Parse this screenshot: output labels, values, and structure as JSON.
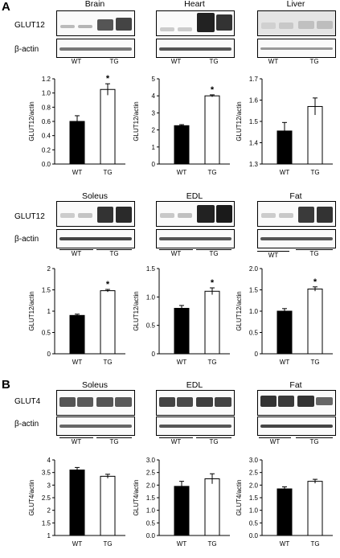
{
  "panels": {
    "a": "A",
    "b": "B"
  },
  "labels": {
    "glut12": "GLUT12",
    "glut4": "GLUT4",
    "actin": "β-actin",
    "wt": "WT",
    "tg": "TG"
  },
  "tissues": {
    "brain": "Brain",
    "heart": "Heart",
    "liver": "Liver",
    "soleus": "Soleus",
    "edl": "EDL",
    "fat": "Fat"
  },
  "colors": {
    "wt_bar": "#000000",
    "tg_bar": "#ffffff"
  },
  "chart_data": [
    {
      "id": "brain-glut12",
      "type": "bar",
      "categories": [
        "WT",
        "TG"
      ],
      "values": [
        0.6,
        1.05
      ],
      "errors": [
        0.08,
        0.08
      ],
      "significant": [
        false,
        true
      ],
      "ylabel": "GLUT12/actin",
      "ylim": [
        0,
        1.2
      ],
      "ticks": [
        "0.0",
        "0.2",
        "0.4",
        "0.6",
        "0.8",
        "1.0",
        "1.2"
      ]
    },
    {
      "id": "heart-glut12",
      "type": "bar",
      "categories": [
        "WT",
        "TG"
      ],
      "values": [
        2.25,
        4.0
      ],
      "errors": [
        0.06,
        0.06
      ],
      "significant": [
        false,
        true
      ],
      "ylabel": "GLUT12/actin",
      "ylim": [
        0,
        5
      ],
      "ticks": [
        "0",
        "1",
        "2",
        "3",
        "4",
        "5"
      ]
    },
    {
      "id": "liver-glut12",
      "type": "bar",
      "categories": [
        "WT",
        "TG"
      ],
      "values": [
        1.455,
        1.57
      ],
      "errors": [
        0.04,
        0.04
      ],
      "significant": [
        false,
        false
      ],
      "ylabel": "GLUT12/actin",
      "ylim": [
        1.3,
        1.7
      ],
      "ticks": [
        "1.3",
        "1.4",
        "1.5",
        "1.6",
        "1.7"
      ]
    },
    {
      "id": "soleus-glut12",
      "type": "bar",
      "categories": [
        "WT",
        "TG"
      ],
      "values": [
        0.9,
        1.48
      ],
      "errors": [
        0.03,
        0.03
      ],
      "significant": [
        false,
        true
      ],
      "ylabel": "GLUT12/actin",
      "ylim": [
        0,
        2
      ],
      "ticks": [
        "0",
        "0.5",
        "1",
        "1.5",
        "2"
      ]
    },
    {
      "id": "edl-glut12",
      "type": "bar",
      "categories": [
        "WT",
        "TG"
      ],
      "values": [
        0.8,
        1.1
      ],
      "errors": [
        0.05,
        0.06
      ],
      "significant": [
        false,
        true
      ],
      "ylabel": "GLUT12/actin",
      "ylim": [
        0,
        1.5
      ],
      "ticks": [
        "0",
        "0.5",
        "1.0",
        "1.5"
      ]
    },
    {
      "id": "fat-glut12",
      "type": "bar",
      "categories": [
        "WT",
        "TG"
      ],
      "values": [
        1.0,
        1.52
      ],
      "errors": [
        0.06,
        0.05
      ],
      "significant": [
        false,
        true
      ],
      "ylabel": "GLUT12/actin",
      "ylim": [
        0,
        2
      ],
      "ticks": [
        "0",
        "0.5",
        "1.0",
        "1.5",
        "2.0"
      ]
    },
    {
      "id": "soleus-glut4",
      "type": "bar",
      "categories": [
        "WT",
        "TG"
      ],
      "values": [
        3.6,
        3.35
      ],
      "errors": [
        0.1,
        0.08
      ],
      "significant": [
        false,
        false
      ],
      "ylabel": "GLUT4/actin",
      "ylim": [
        1,
        4
      ],
      "ticks": [
        "1",
        "1.5",
        "2",
        "2.5",
        "3",
        "3.5",
        "4"
      ]
    },
    {
      "id": "edl-glut4",
      "type": "bar",
      "categories": [
        "WT",
        "TG"
      ],
      "values": [
        1.95,
        2.25
      ],
      "errors": [
        0.2,
        0.2
      ],
      "significant": [
        false,
        false
      ],
      "ylabel": "GLUT4/actin",
      "ylim": [
        0,
        3
      ],
      "ticks": [
        "0.0",
        "0.5",
        "1.0",
        "1.5",
        "2.0",
        "2.5",
        "3.0"
      ]
    },
    {
      "id": "fat-glut4",
      "type": "bar",
      "categories": [
        "WT",
        "TG"
      ],
      "values": [
        1.85,
        2.15
      ],
      "errors": [
        0.08,
        0.08
      ],
      "significant": [
        false,
        false
      ],
      "ylabel": "GLUT4/actin",
      "ylim": [
        0,
        3
      ],
      "ticks": [
        "0.0",
        "0.5",
        "1.0",
        "1.5",
        "2.0",
        "2.5",
        "3.0"
      ]
    }
  ]
}
